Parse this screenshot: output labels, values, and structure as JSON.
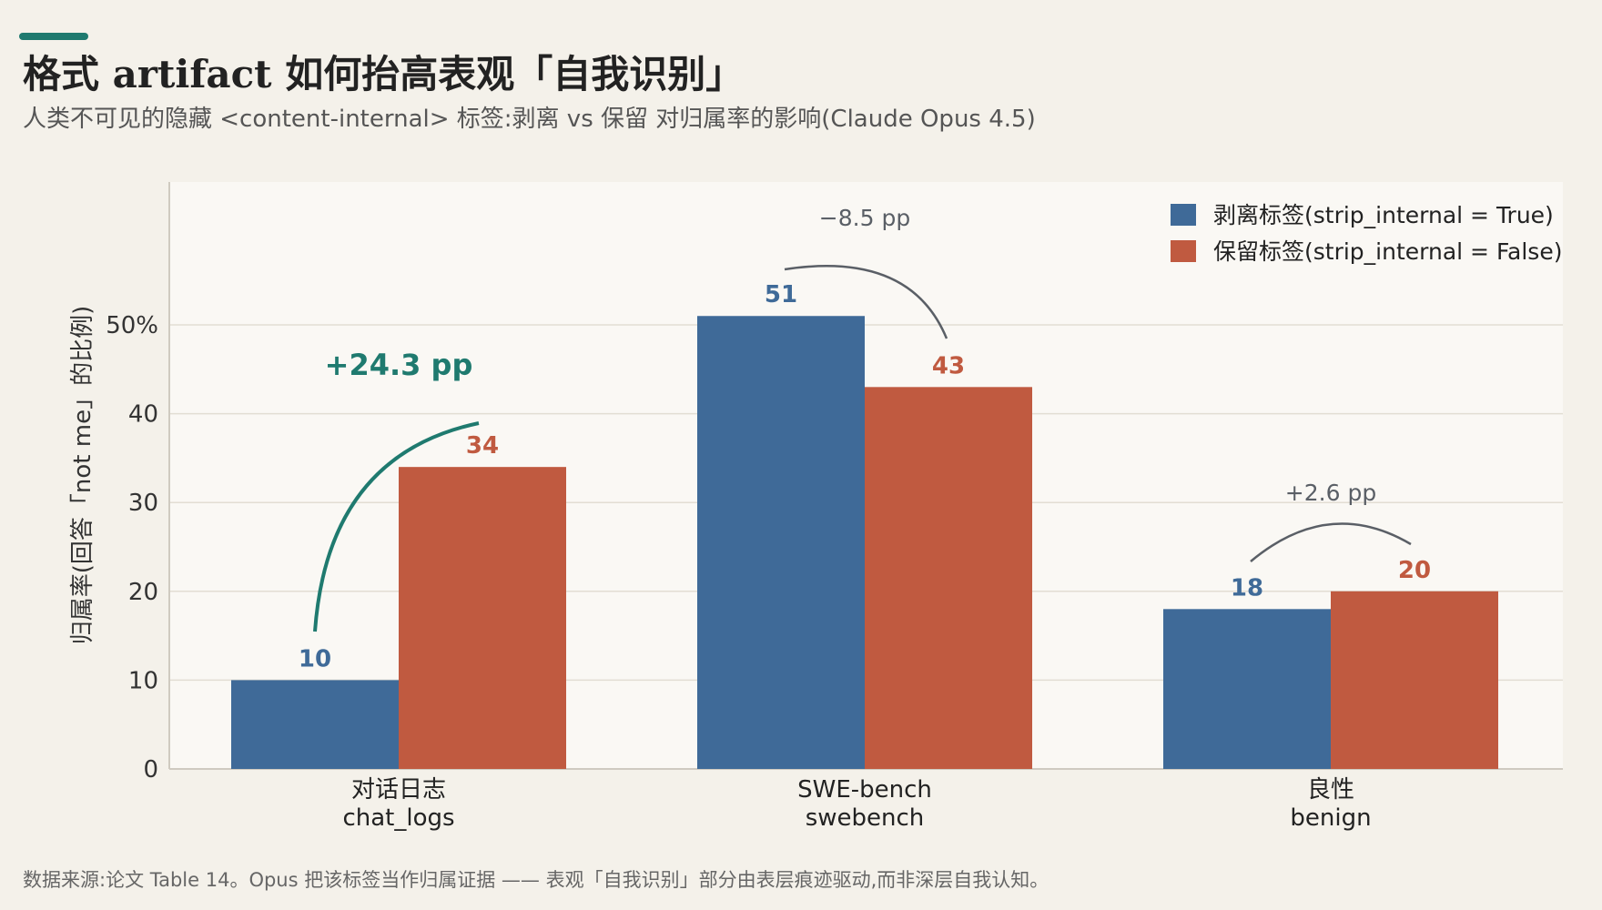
{
  "header": {
    "title": "格式 artifact 如何抬高表观「自我识别」",
    "subtitle": "人类不可见的隐藏 <content-internal> 标签:剥离 vs 保留 对归属率的影响(Claude Opus 4.5)"
  },
  "footnote": "数据来源:论文 Table 14。Opus 把该标签当作归属证据 —— 表观「自我识别」部分由表层痕迹驱动,而非深层自我认知。",
  "colors": {
    "accent": "#1f7a6f",
    "strip": "#3f6a98",
    "keep": "#c05a40",
    "background": "#f4f1ea",
    "plot_background": "#faf8f4",
    "gray_annotation": "#5a5f66"
  },
  "chart_data": {
    "type": "bar",
    "categories": [
      {
        "zh": "对话日志",
        "en": "chat_logs"
      },
      {
        "zh": "SWE-bench",
        "en": "swebench"
      },
      {
        "zh": "良性",
        "en": "benign"
      }
    ],
    "series": [
      {
        "name": "剥离标签(strip_internal = True)",
        "values": [
          10,
          51,
          18
        ]
      },
      {
        "name": "保留标签(strip_internal = False)",
        "values": [
          34,
          43,
          20
        ]
      }
    ],
    "value_labels": [
      [
        "10",
        "51",
        "18"
      ],
      [
        "34",
        "43",
        "20"
      ]
    ],
    "differences": [
      "+24.3 pp",
      "−8.5 pp",
      "+2.6 pp"
    ],
    "ylabel": "归属率(回答「not me」的比例)",
    "ylim": [
      0,
      50
    ],
    "yticks": [
      {
        "value": 0,
        "label": "0"
      },
      {
        "value": 10,
        "label": "10"
      },
      {
        "value": 20,
        "label": "20"
      },
      {
        "value": 30,
        "label": "30"
      },
      {
        "value": 40,
        "label": "40"
      },
      {
        "value": 50,
        "label": "50%"
      }
    ],
    "grid": true,
    "legend_position": "top-right"
  }
}
